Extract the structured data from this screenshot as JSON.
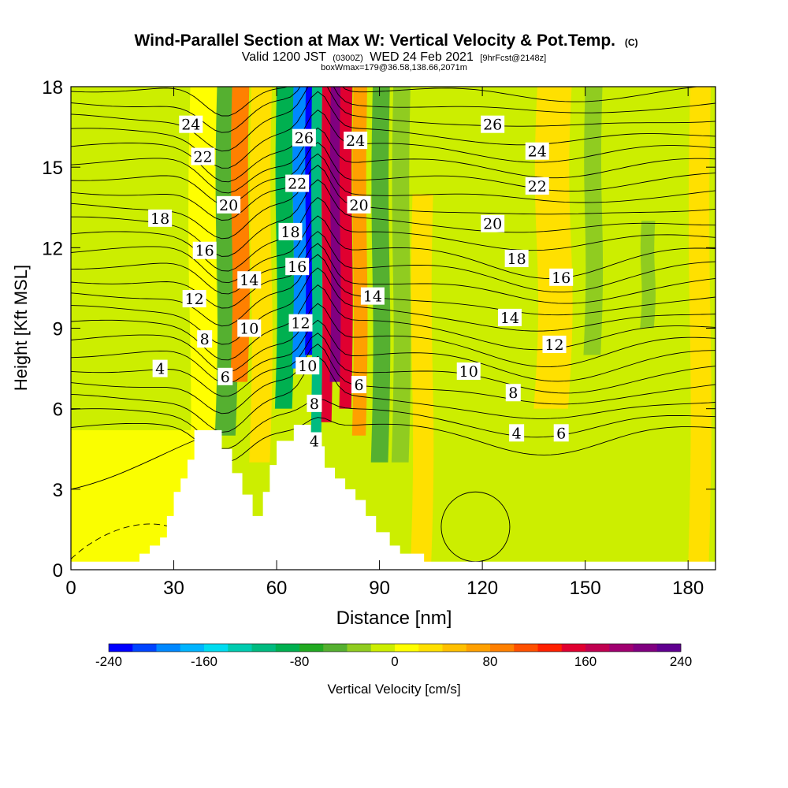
{
  "chart_data": {
    "type": "heatmap",
    "title": "Wind-Parallel Section at Max W: Vertical Velocity & Pot.Temp.",
    "title_mark": "(C)",
    "subtitle": {
      "valid": "Valid 1200 JST",
      "utc": "(0300Z)",
      "date": "WED 24 Feb 2021",
      "forecast": "[9hrFcst@2148z]"
    },
    "subsubtitle": "boxWmax=179@36.58,138.66,2071m",
    "xlabel": "Distance [nm]",
    "ylabel": "Height [Kft MSL]",
    "xlim": [
      0,
      188
    ],
    "ylim": [
      0,
      18
    ],
    "x_ticks": [
      0,
      30,
      60,
      90,
      120,
      150,
      180
    ],
    "y_ticks": [
      0,
      3,
      6,
      9,
      12,
      15,
      18
    ],
    "colorbar": {
      "label": "Vertical Velocity [cm/s]",
      "range": [
        -240,
        240
      ],
      "tick_values": [
        -240,
        -160,
        -80,
        0,
        80,
        160,
        240
      ],
      "colors": [
        "#0000ff",
        "#0044ff",
        "#0088ff",
        "#00b4ff",
        "#00dcf0",
        "#00ccb0",
        "#00bb80",
        "#00b050",
        "#22aa22",
        "#55b030",
        "#90cc20",
        "#ccee00",
        "#ffff00",
        "#ffe000",
        "#ffc000",
        "#ffa000",
        "#ff8000",
        "#ff5000",
        "#ff2000",
        "#e00030",
        "#c00050",
        "#a00070",
        "#800080",
        "#600090"
      ]
    },
    "velocity_bands": [
      {
        "x_center": 38,
        "width": 8,
        "w": 15,
        "z_min": 0,
        "z_max": 18
      },
      {
        "x_center": 45,
        "width": 6,
        "w": -60,
        "z_min": 5,
        "z_max": 18
      },
      {
        "x_center": 49,
        "width": 5,
        "w": 90,
        "z_min": 7,
        "z_max": 18
      },
      {
        "x_center": 55,
        "width": 6,
        "w": 35,
        "z_min": 4,
        "z_max": 18
      },
      {
        "x_center": 62,
        "width": 5,
        "w": -90,
        "z_min": 6,
        "z_max": 18
      },
      {
        "x_center": 66.5,
        "width": 4,
        "w": -190,
        "z_min": 7.5,
        "z_max": 18
      },
      {
        "x_center": 69.5,
        "width": 2.5,
        "w": -230,
        "z_min": 8,
        "z_max": 18
      },
      {
        "x_center": 71.5,
        "width": 3,
        "w": -120,
        "z_min": 5,
        "z_max": 18
      },
      {
        "x_center": 74.5,
        "width": 3,
        "w": 150,
        "z_min": 5.5,
        "z_max": 18
      },
      {
        "x_center": 77,
        "width": 3,
        "w": 215,
        "z_min": 7,
        "z_max": 18
      },
      {
        "x_center": 80,
        "width": 3.5,
        "w": 140,
        "z_min": 6,
        "z_max": 18
      },
      {
        "x_center": 84,
        "width": 4,
        "w": 60,
        "z_min": 5,
        "z_max": 18
      },
      {
        "x_center": 90,
        "width": 5,
        "w": -50,
        "z_min": 4,
        "z_max": 18
      },
      {
        "x_center": 96,
        "width": 5,
        "w": -40,
        "z_min": 4,
        "z_max": 18
      },
      {
        "x_center": 102,
        "width": 6,
        "w": 30,
        "z_min": 0,
        "z_max": 14
      },
      {
        "x_center": 112,
        "width": 8,
        "w": -15,
        "z_min": 3,
        "z_max": 14
      },
      {
        "x_center": 140,
        "width": 10,
        "w": 25,
        "z_min": 6,
        "z_max": 18
      },
      {
        "x_center": 152,
        "width": 5,
        "w": -25,
        "z_min": 8,
        "z_max": 18
      },
      {
        "x_center": 168,
        "width": 4,
        "w": -30,
        "z_min": 9,
        "z_max": 13
      },
      {
        "x_center": 183,
        "width": 6,
        "w": 35,
        "z_min": 0,
        "z_max": 18
      }
    ],
    "terrain": [
      [
        0,
        0.3
      ],
      [
        20,
        0.3
      ],
      [
        20,
        0.6
      ],
      [
        23,
        0.6
      ],
      [
        23,
        0.9
      ],
      [
        26,
        0.9
      ],
      [
        26,
        1.2
      ],
      [
        28,
        1.2
      ],
      [
        28,
        2.0
      ],
      [
        30,
        2.0
      ],
      [
        30,
        2.9
      ],
      [
        32,
        2.9
      ],
      [
        32,
        3.4
      ],
      [
        34,
        3.4
      ],
      [
        34,
        4.1
      ],
      [
        36,
        4.1
      ],
      [
        36,
        5.2
      ],
      [
        44,
        5.2
      ],
      [
        44,
        4.5
      ],
      [
        47,
        4.5
      ],
      [
        47,
        3.6
      ],
      [
        50,
        3.6
      ],
      [
        50,
        2.8
      ],
      [
        53,
        2.8
      ],
      [
        53,
        2.0
      ],
      [
        56,
        2.0
      ],
      [
        56,
        2.9
      ],
      [
        58,
        2.9
      ],
      [
        58,
        3.9
      ],
      [
        60,
        3.9
      ],
      [
        60,
        4.8
      ],
      [
        65,
        4.8
      ],
      [
        65,
        5.4
      ],
      [
        70,
        5.4
      ],
      [
        70,
        4.6
      ],
      [
        74,
        4.6
      ],
      [
        74,
        3.8
      ],
      [
        77,
        3.8
      ],
      [
        77,
        3.4
      ],
      [
        80,
        3.4
      ],
      [
        80,
        3.0
      ],
      [
        83,
        3.0
      ],
      [
        83,
        2.6
      ],
      [
        86,
        2.6
      ],
      [
        86,
        2.0
      ],
      [
        89,
        2.0
      ],
      [
        89,
        1.4
      ],
      [
        93,
        1.4
      ],
      [
        93,
        0.9
      ],
      [
        96,
        0.9
      ],
      [
        96,
        0.6
      ],
      [
        103,
        0.6
      ],
      [
        103,
        0.3
      ],
      [
        188,
        0.3
      ]
    ],
    "contour_labels": [
      {
        "text": "24",
        "x": 35,
        "y": 16.6
      },
      {
        "text": "22",
        "x": 38.5,
        "y": 15.4
      },
      {
        "text": "20",
        "x": 46,
        "y": 13.6
      },
      {
        "text": "18",
        "x": 26,
        "y": 13.1
      },
      {
        "text": "16",
        "x": 39,
        "y": 11.9
      },
      {
        "text": "14",
        "x": 52,
        "y": 10.8
      },
      {
        "text": "12",
        "x": 36,
        "y": 10.1
      },
      {
        "text": "8",
        "x": 39,
        "y": 8.6
      },
      {
        "text": "10",
        "x": 52,
        "y": 9.0
      },
      {
        "text": "4",
        "x": 26,
        "y": 7.5
      },
      {
        "text": "6",
        "x": 45,
        "y": 7.2
      },
      {
        "text": "26",
        "x": 68,
        "y": 16.1
      },
      {
        "text": "22",
        "x": 66,
        "y": 14.4
      },
      {
        "text": "18",
        "x": 64,
        "y": 12.6
      },
      {
        "text": "16",
        "x": 66,
        "y": 11.3
      },
      {
        "text": "12",
        "x": 67,
        "y": 9.2
      },
      {
        "text": "10",
        "x": 69,
        "y": 7.6
      },
      {
        "text": "8",
        "x": 71,
        "y": 6.2
      },
      {
        "text": "4",
        "x": 71,
        "y": 4.8
      },
      {
        "text": "24",
        "x": 83,
        "y": 16.0
      },
      {
        "text": "20",
        "x": 84,
        "y": 13.6
      },
      {
        "text": "14",
        "x": 88,
        "y": 10.2
      },
      {
        "text": "6",
        "x": 84,
        "y": 6.9
      },
      {
        "text": "26",
        "x": 123,
        "y": 16.6
      },
      {
        "text": "24",
        "x": 136,
        "y": 15.6
      },
      {
        "text": "22",
        "x": 136,
        "y": 14.3
      },
      {
        "text": "20",
        "x": 123,
        "y": 12.9
      },
      {
        "text": "18",
        "x": 130,
        "y": 11.6
      },
      {
        "text": "16",
        "x": 143,
        "y": 10.9
      },
      {
        "text": "14",
        "x": 128,
        "y": 9.4
      },
      {
        "text": "12",
        "x": 141,
        "y": 8.4
      },
      {
        "text": "10",
        "x": 116,
        "y": 7.4
      },
      {
        "text": "8",
        "x": 129,
        "y": 6.6
      },
      {
        "text": "4",
        "x": 130,
        "y": 5.1
      },
      {
        "text": "6",
        "x": 143,
        "y": 5.1
      }
    ]
  }
}
